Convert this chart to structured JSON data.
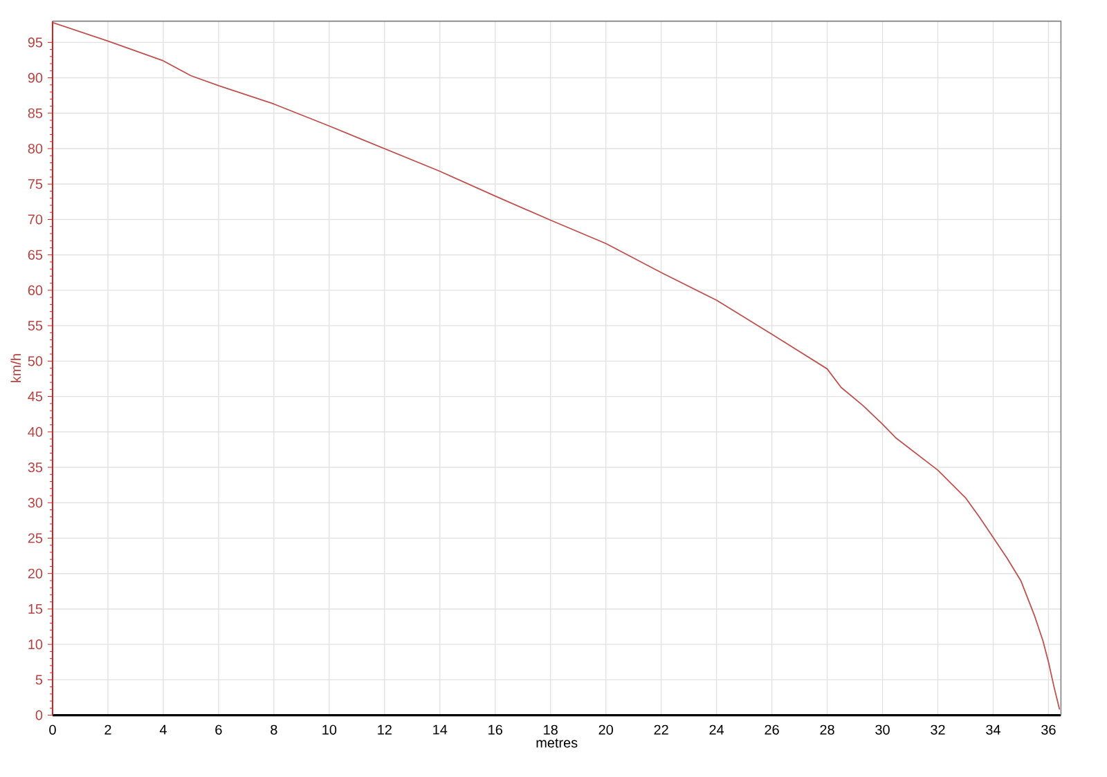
{
  "chart_data": {
    "type": "line",
    "xlabel": "metres",
    "ylabel": "km/h",
    "x": [
      0,
      2,
      4,
      5,
      6,
      8,
      10,
      12,
      14,
      16,
      18,
      20,
      22,
      24,
      26,
      28,
      28.5,
      29.3,
      30,
      30.5,
      32,
      33,
      33.5,
      34,
      34.5,
      35,
      35.5,
      35.8,
      36,
      36.2,
      36.4
    ],
    "series": [
      {
        "color": "#c0504d",
        "values": [
          97.8,
          95.2,
          92.4,
          90.3,
          88.9,
          86.3,
          83.2,
          80.0,
          76.8,
          73.3,
          69.9,
          66.6,
          62.5,
          58.6,
          53.8,
          48.9,
          46.3,
          43.7,
          41.1,
          39.1,
          34.6,
          30.7,
          28.0,
          25.1,
          22.2,
          19.0,
          14.0,
          10.5,
          7.5,
          4.0,
          0.8
        ]
      }
    ],
    "xlim": [
      0,
      36.45
    ],
    "ylim": [
      0,
      98
    ],
    "xticks": [
      0,
      2,
      4,
      6,
      8,
      10,
      12,
      14,
      16,
      18,
      20,
      22,
      24,
      26,
      28,
      30,
      32,
      34,
      36
    ],
    "yticks": [
      0,
      5,
      10,
      15,
      20,
      25,
      30,
      35,
      40,
      45,
      50,
      55,
      60,
      65,
      70,
      75,
      80,
      85,
      90,
      95
    ],
    "grid": true
  }
}
